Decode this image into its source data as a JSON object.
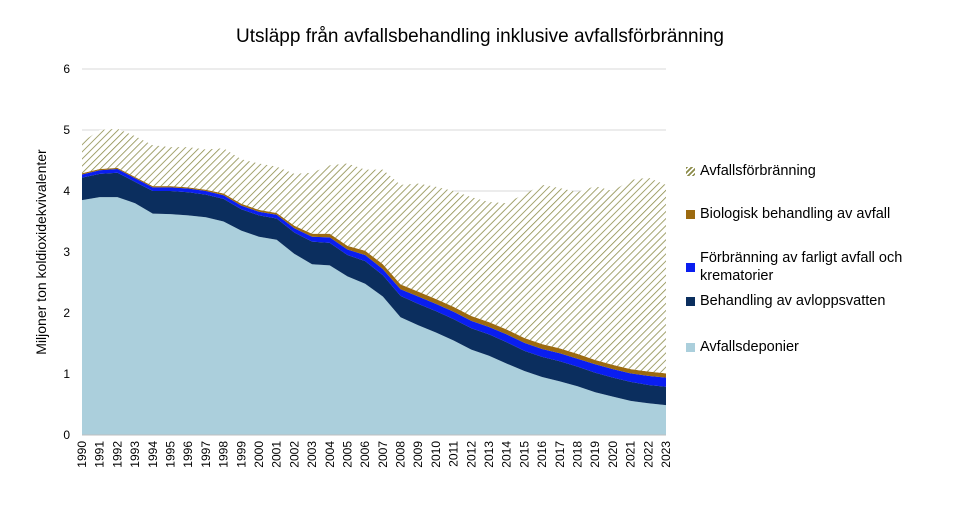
{
  "chart_data": {
    "type": "stacked_area",
    "title": "Utsläpp från avfallsbehandling inklusive avfallsförbränning",
    "y_label": "Miljoner ton koldioxidekvivalenter",
    "x": [
      1990,
      1991,
      1992,
      1993,
      1994,
      1995,
      1996,
      1997,
      1998,
      1999,
      2000,
      2001,
      2002,
      2003,
      2004,
      2005,
      2006,
      2007,
      2008,
      2009,
      2010,
      2011,
      2012,
      2013,
      2014,
      2015,
      2016,
      2017,
      2018,
      2019,
      2020,
      2021,
      2022,
      2023
    ],
    "xlim": [
      1990,
      2023
    ],
    "ylim": [
      0,
      6
    ],
    "yticks": [
      0,
      1,
      2,
      3,
      4,
      5,
      6
    ],
    "grid": true,
    "series": [
      {
        "name": "Avfallsdeponier",
        "color": "#abcfdc",
        "values": [
          3.85,
          3.9,
          3.9,
          3.8,
          3.63,
          3.62,
          3.6,
          3.57,
          3.5,
          3.35,
          3.25,
          3.2,
          2.97,
          2.8,
          2.78,
          2.6,
          2.48,
          2.27,
          1.93,
          1.8,
          1.68,
          1.55,
          1.4,
          1.3,
          1.17,
          1.05,
          0.95,
          0.88,
          0.8,
          0.7,
          0.63,
          0.56,
          0.52,
          0.49
        ]
      },
      {
        "name": "Behandling av avloppsvatten",
        "color": "#0b2e5e",
        "values": [
          0.37,
          0.38,
          0.4,
          0.35,
          0.37,
          0.38,
          0.38,
          0.37,
          0.37,
          0.35,
          0.35,
          0.35,
          0.35,
          0.37,
          0.37,
          0.35,
          0.37,
          0.35,
          0.35,
          0.35,
          0.35,
          0.35,
          0.35,
          0.35,
          0.35,
          0.33,
          0.33,
          0.33,
          0.32,
          0.32,
          0.31,
          0.31,
          0.3,
          0.3
        ]
      },
      {
        "name": "Förbränning av farligt avfall och krematorier",
        "color": "#0a1ef0",
        "values": [
          0.05,
          0.06,
          0.06,
          0.06,
          0.06,
          0.06,
          0.06,
          0.06,
          0.06,
          0.06,
          0.06,
          0.06,
          0.07,
          0.08,
          0.09,
          0.09,
          0.1,
          0.1,
          0.11,
          0.12,
          0.12,
          0.12,
          0.12,
          0.12,
          0.13,
          0.13,
          0.13,
          0.13,
          0.13,
          0.14,
          0.14,
          0.14,
          0.15,
          0.15
        ]
      },
      {
        "name": "Biologisk behandling av avfall",
        "color": "#9c6a10",
        "values": [
          0.02,
          0.02,
          0.02,
          0.02,
          0.02,
          0.02,
          0.02,
          0.02,
          0.03,
          0.03,
          0.03,
          0.03,
          0.04,
          0.05,
          0.06,
          0.06,
          0.07,
          0.08,
          0.08,
          0.08,
          0.08,
          0.08,
          0.08,
          0.08,
          0.08,
          0.08,
          0.08,
          0.08,
          0.08,
          0.07,
          0.07,
          0.07,
          0.07,
          0.07
        ]
      },
      {
        "name": "Avfallsförbränning",
        "color": "#8c8c4a",
        "pattern": "hatch",
        "values": [
          0.51,
          0.64,
          0.64,
          0.67,
          0.67,
          0.64,
          0.66,
          0.66,
          0.74,
          0.73,
          0.76,
          0.76,
          0.85,
          1.0,
          1.12,
          1.35,
          1.33,
          1.55,
          1.63,
          1.77,
          1.84,
          1.9,
          1.95,
          1.97,
          2.07,
          2.36,
          2.61,
          2.63,
          2.65,
          2.85,
          2.85,
          3.1,
          3.18,
          3.09
        ]
      }
    ]
  }
}
